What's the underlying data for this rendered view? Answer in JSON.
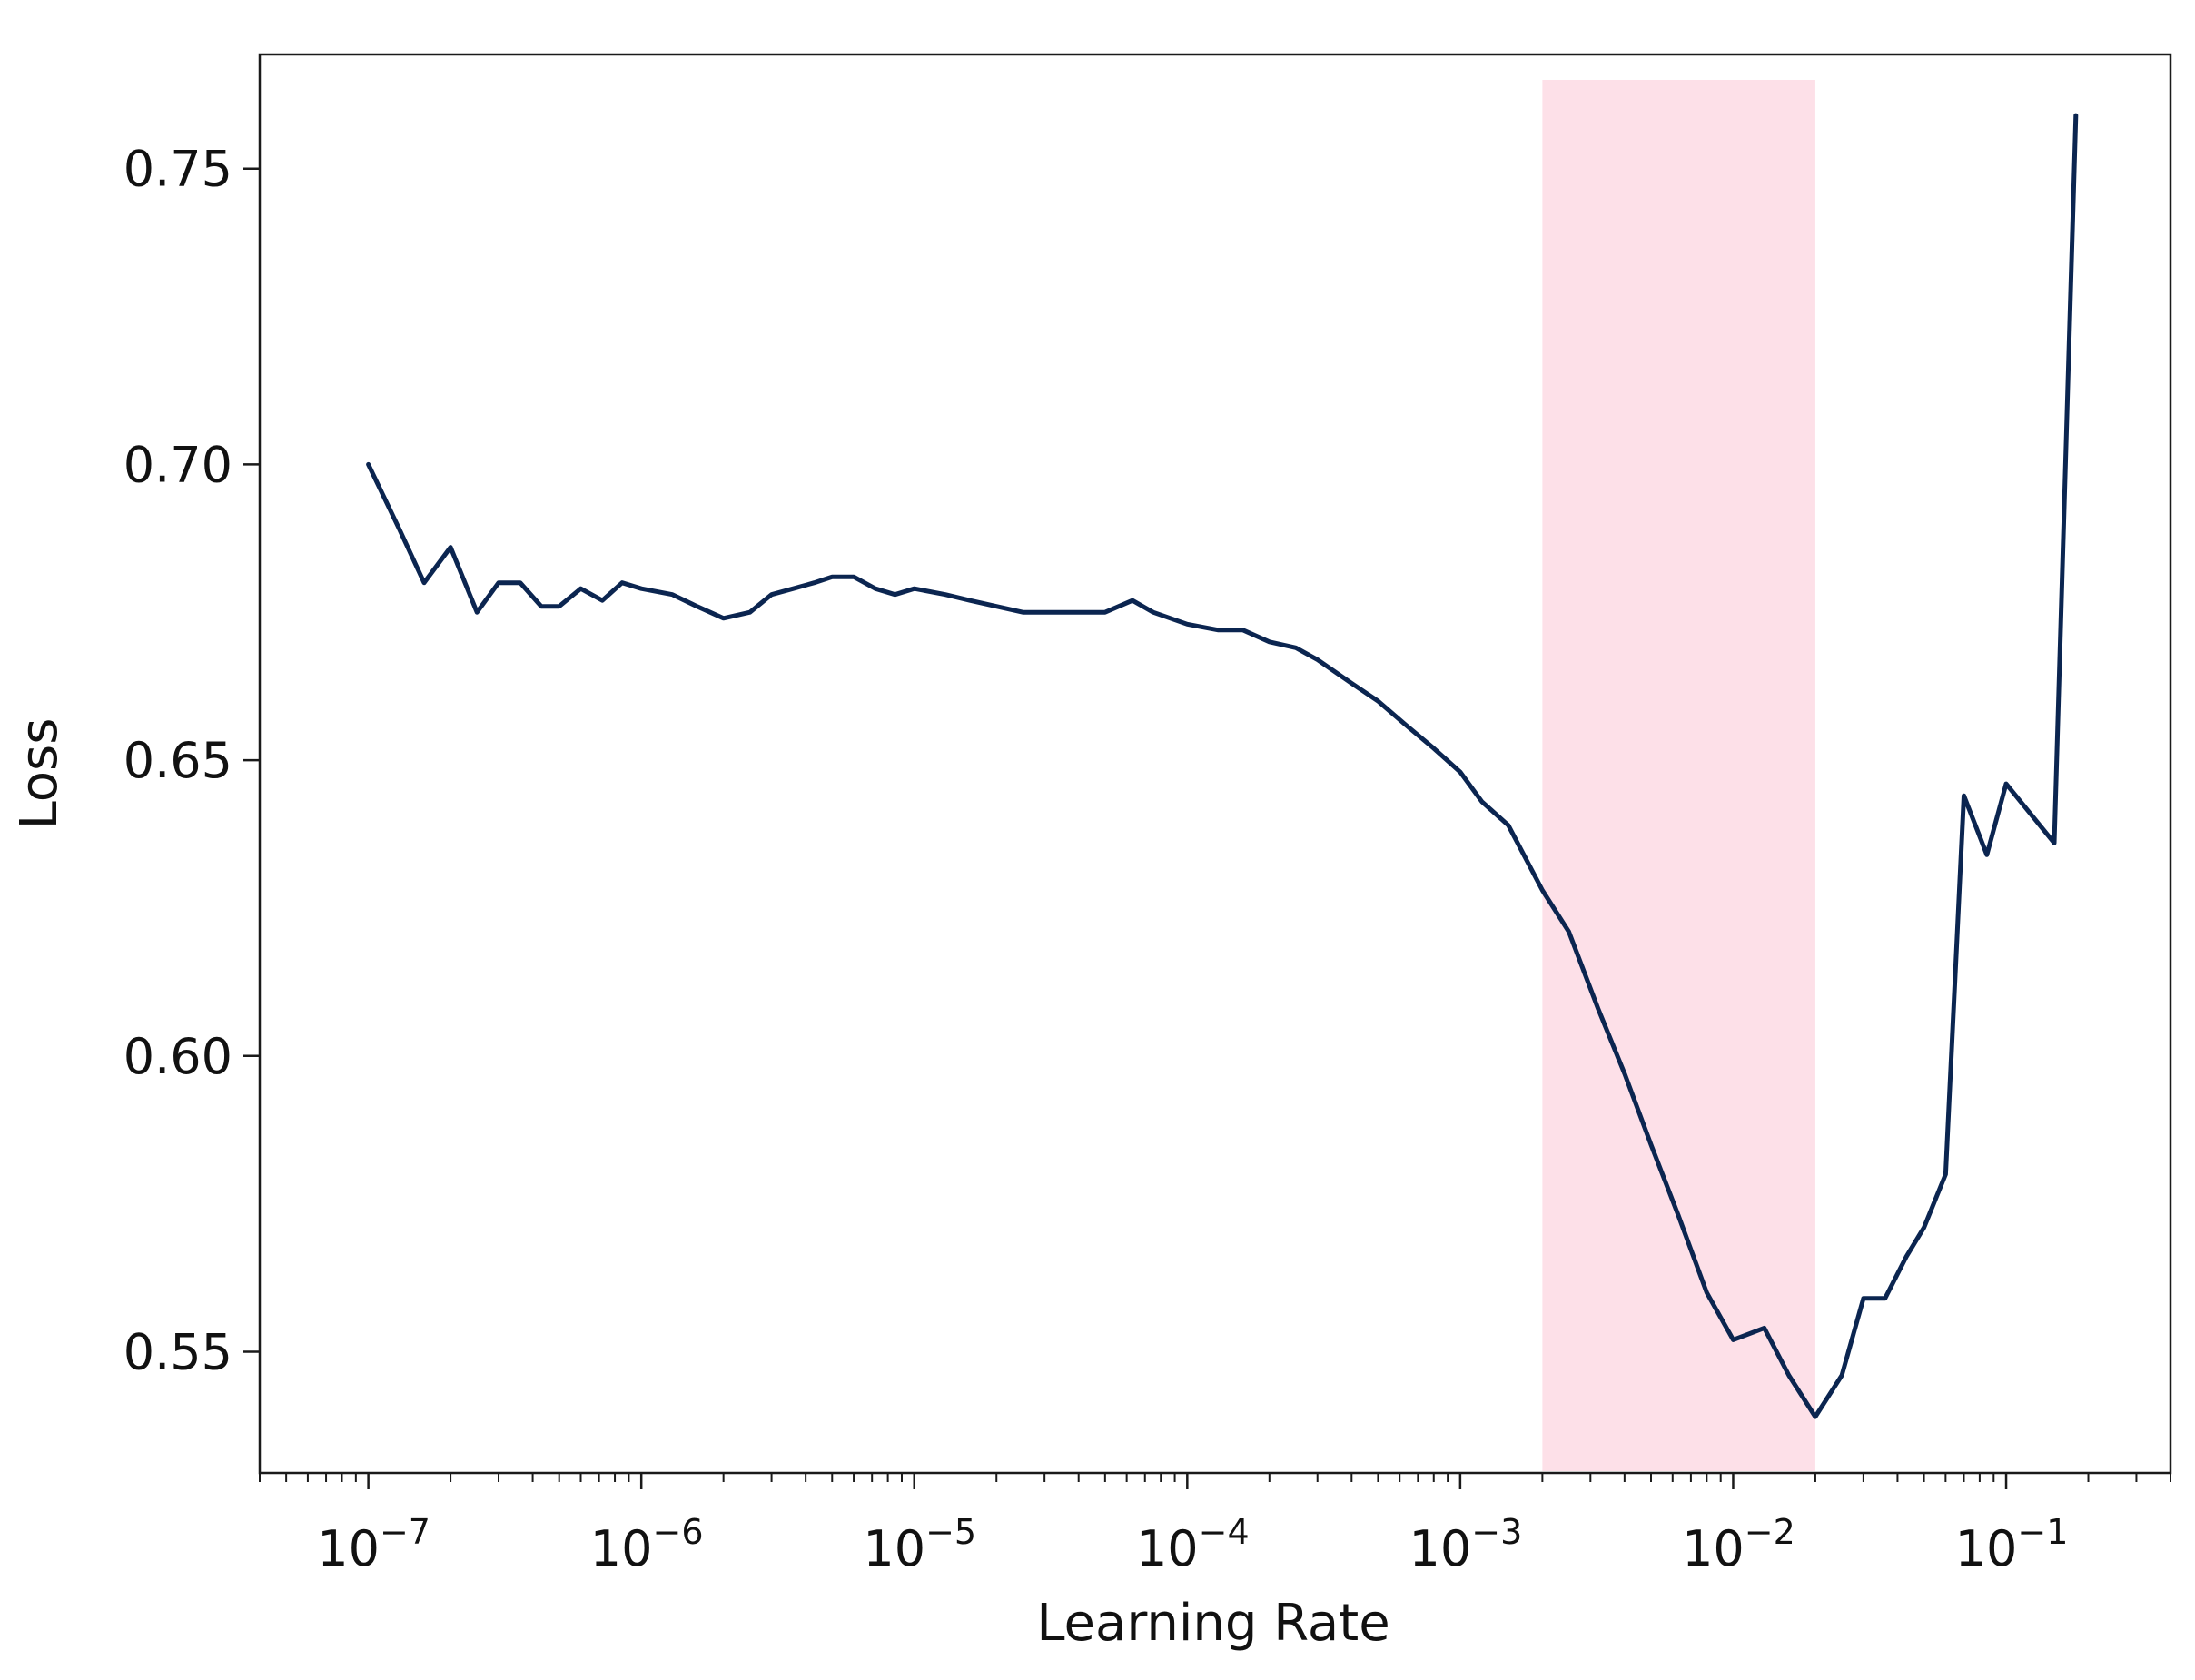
{
  "chart_data": {
    "type": "line",
    "title": "",
    "xlabel": "Learning Rate",
    "ylabel": "Loss",
    "xscale": "log",
    "xlim": [
      4e-08,
      0.4
    ],
    "ylim": [
      0.5295,
      0.7693
    ],
    "grid": false,
    "x_ticks": [
      {
        "value": 1e-07,
        "base": "10",
        "exp": "−7"
      },
      {
        "value": 1e-06,
        "base": "10",
        "exp": "−6"
      },
      {
        "value": 1e-05,
        "base": "10",
        "exp": "−5"
      },
      {
        "value": 0.0001,
        "base": "10",
        "exp": "−4"
      },
      {
        "value": 0.001,
        "base": "10",
        "exp": "−3"
      },
      {
        "value": 0.01,
        "base": "10",
        "exp": "−2"
      },
      {
        "value": 0.1,
        "base": "10",
        "exp": "−1"
      }
    ],
    "y_ticks": [
      {
        "value": 0.55,
        "label": "0.55"
      },
      {
        "value": 0.6,
        "label": "0.60"
      },
      {
        "value": 0.65,
        "label": "0.65"
      },
      {
        "value": 0.7,
        "label": "0.70"
      },
      {
        "value": 0.75,
        "label": "0.75"
      }
    ],
    "highlight": {
      "x_start": 0.002,
      "x_end": 0.02,
      "color": "#fde0e8"
    },
    "series": [
      {
        "color": "#0b2550",
        "x": [
          1e-07,
          1.3e-07,
          1.6e-07,
          2e-07,
          2.5e-07,
          3e-07,
          3.6e-07,
          4.3e-07,
          5e-07,
          6e-07,
          7.2e-07,
          8.5e-07,
          1e-06,
          1.3e-06,
          1.6e-06,
          2e-06,
          2.5e-06,
          3e-06,
          3.6e-06,
          4.3e-06,
          5e-06,
          6e-06,
          7.2e-06,
          8.5e-06,
          1e-05,
          1.3e-05,
          1.6e-05,
          2e-05,
          2.5e-05,
          3e-05,
          3.6e-05,
          4.3e-05,
          5e-05,
          6.3e-05,
          7.5e-05,
          0.0001,
          0.00013,
          0.00016,
          0.0002,
          0.00025,
          0.0003,
          0.0004,
          0.0005,
          0.00063,
          0.0008,
          0.001,
          0.0012,
          0.0015,
          0.002,
          0.0025,
          0.0032,
          0.004,
          0.005,
          0.0063,
          0.008,
          0.01,
          0.013,
          0.016,
          0.02,
          0.025,
          0.03,
          0.036,
          0.043,
          0.05,
          0.06,
          0.07,
          0.085,
          0.1,
          0.15,
          0.18
        ],
        "y": [
          0.7,
          0.689,
          0.68,
          0.686,
          0.675,
          0.68,
          0.68,
          0.676,
          0.676,
          0.679,
          0.677,
          0.68,
          0.679,
          0.678,
          0.676,
          0.674,
          0.675,
          0.678,
          0.679,
          0.68,
          0.681,
          0.681,
          0.679,
          0.678,
          0.679,
          0.678,
          0.677,
          0.676,
          0.675,
          0.675,
          0.675,
          0.675,
          0.675,
          0.677,
          0.675,
          0.673,
          0.672,
          0.672,
          0.67,
          0.669,
          0.667,
          0.663,
          0.66,
          0.656,
          0.652,
          0.648,
          0.643,
          0.639,
          0.628,
          0.621,
          0.608,
          0.597,
          0.585,
          0.573,
          0.56,
          0.552,
          0.554,
          0.546,
          0.539,
          0.546,
          0.559,
          0.559,
          0.566,
          0.571,
          0.58,
          0.644,
          0.634,
          0.646,
          0.636,
          0.759
        ]
      }
    ]
  }
}
